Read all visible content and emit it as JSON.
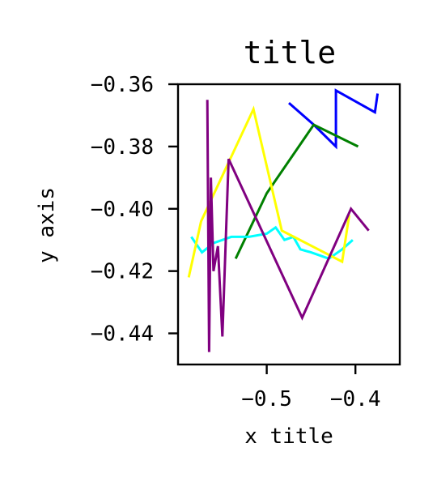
{
  "chart_data": {
    "type": "line",
    "title": "title",
    "xlabel": "x title",
    "ylabel": "y axis",
    "xlim": [
      -0.6,
      -0.35
    ],
    "ylim": [
      -0.45,
      -0.36
    ],
    "xticks": [
      -0.5,
      -0.4
    ],
    "xtick_labels": [
      "−0.5",
      "−0.4"
    ],
    "yticks": [
      -0.36,
      -0.38,
      -0.4,
      -0.42,
      -0.44
    ],
    "ytick_labels": [
      "−0.36",
      "−0.38",
      "−0.40",
      "−0.42",
      "−0.44"
    ],
    "grid": false,
    "legend": false,
    "series": [
      {
        "color": "#0000ff",
        "x": [
          -0.475,
          -0.447,
          -0.422,
          -0.422,
          -0.378,
          -0.375
        ],
        "y": [
          -0.366,
          -0.373,
          -0.38,
          -0.362,
          -0.369,
          -0.363
        ]
      },
      {
        "color": "#008000",
        "x": [
          -0.535,
          -0.5,
          -0.447,
          -0.397
        ],
        "y": [
          -0.416,
          -0.395,
          -0.373,
          -0.38
        ]
      },
      {
        "color": "#00ffff",
        "x": [
          -0.585,
          -0.573,
          -0.56,
          -0.54,
          -0.52,
          -0.5,
          -0.49,
          -0.48,
          -0.47,
          -0.462,
          -0.45,
          -0.44,
          -0.43,
          -0.415,
          -0.403
        ],
        "y": [
          -0.409,
          -0.414,
          -0.411,
          -0.409,
          -0.409,
          -0.408,
          -0.406,
          -0.41,
          -0.409,
          -0.413,
          -0.414,
          -0.415,
          -0.416,
          -0.413,
          -0.41
        ]
      },
      {
        "color": "#ffff00",
        "x": [
          -0.588,
          -0.574,
          -0.515,
          -0.483,
          -0.415,
          -0.407
        ],
        "y": [
          -0.422,
          -0.404,
          -0.368,
          -0.407,
          -0.417,
          -0.402
        ]
      },
      {
        "color": "#800080",
        "x": [
          -0.567,
          -0.565,
          -0.563,
          -0.56,
          -0.555,
          -0.55,
          -0.543,
          -0.46,
          -0.405,
          -0.385
        ],
        "y": [
          -0.365,
          -0.446,
          -0.39,
          -0.42,
          -0.412,
          -0.441,
          -0.384,
          -0.435,
          -0.4,
          -0.407
        ]
      }
    ]
  }
}
